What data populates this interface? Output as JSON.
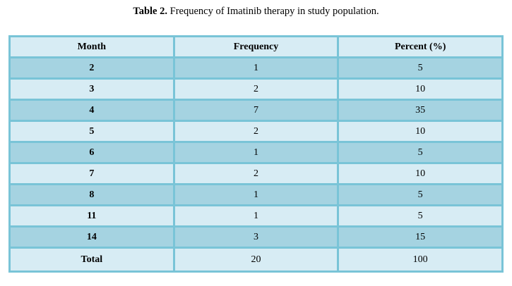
{
  "title": {
    "label": "Table 2.",
    "text": " Frequency of Imatinib therapy in study population."
  },
  "table": {
    "headers": [
      "Month",
      "Frequency",
      "Percent (%)"
    ],
    "rows": [
      {
        "month": "2",
        "frequency": "1",
        "percent": "5"
      },
      {
        "month": "3",
        "frequency": "2",
        "percent": "10"
      },
      {
        "month": "4",
        "frequency": "7",
        "percent": "35"
      },
      {
        "month": "5",
        "frequency": "2",
        "percent": "10"
      },
      {
        "month": "6",
        "frequency": "1",
        "percent": "5"
      },
      {
        "month": "7",
        "frequency": "2",
        "percent": "10"
      },
      {
        "month": "8",
        "frequency": "1",
        "percent": "5"
      },
      {
        "month": "11",
        "frequency": "1",
        "percent": "5"
      },
      {
        "month": "14",
        "frequency": "3",
        "percent": "15"
      },
      {
        "month": "Total",
        "frequency": "20",
        "percent": "100"
      }
    ]
  },
  "colors": {
    "border": "#79c4d7",
    "row_light": "#d7ecf4",
    "row_dark": "#a5d3e1",
    "text": "#000000",
    "page_background": "#ffffff"
  },
  "chart_data": {
    "type": "table",
    "title": "Table 2. Frequency of Imatinib therapy in study population.",
    "columns": [
      "Month",
      "Frequency",
      "Percent (%)"
    ],
    "categories": [
      "2",
      "3",
      "4",
      "5",
      "6",
      "7",
      "8",
      "11",
      "14"
    ],
    "series": [
      {
        "name": "Frequency",
        "values": [
          1,
          2,
          7,
          2,
          1,
          2,
          1,
          1,
          3
        ]
      },
      {
        "name": "Percent (%)",
        "values": [
          5,
          10,
          35,
          10,
          5,
          10,
          5,
          5,
          15
        ]
      }
    ],
    "totals": {
      "Frequency": 20,
      "Percent (%)": 100
    }
  }
}
